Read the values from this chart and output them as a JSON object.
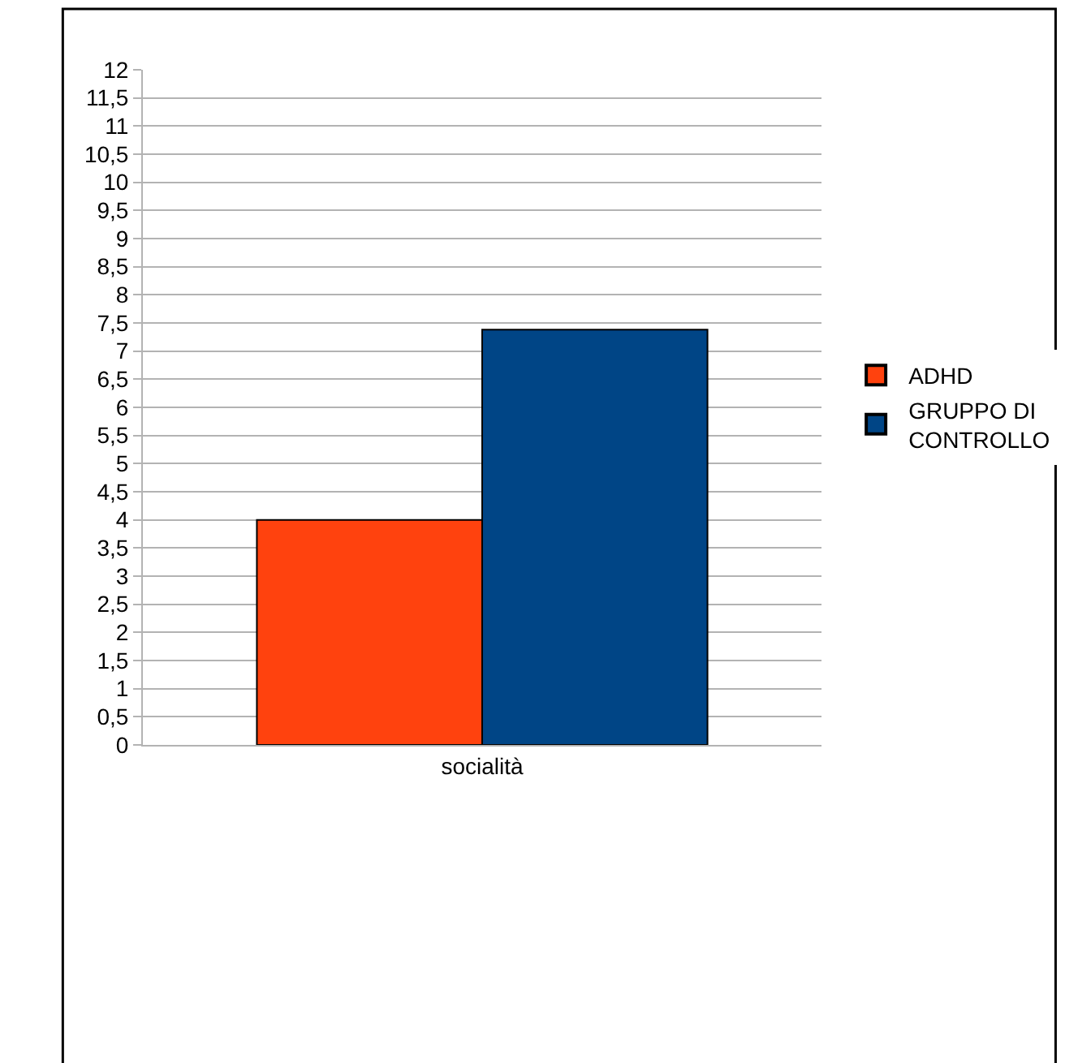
{
  "chart_data": {
    "type": "bar",
    "categories": [
      "socialità"
    ],
    "series": [
      {
        "name": "ADHD",
        "color": "#ff420e",
        "values": [
          4.0
        ]
      },
      {
        "name": "GRUPPO DI CONTROLLO",
        "color": "#004586",
        "values": [
          7.38
        ]
      }
    ],
    "ylim": [
      0,
      12
    ],
    "yticks": [
      0,
      {
        "value": 0.5,
        "label": "0,5"
      },
      1,
      {
        "value": 1.5,
        "label": "1,5"
      },
      2,
      {
        "value": 2.5,
        "label": "2,5"
      },
      3,
      {
        "value": 3.5,
        "label": "3,5"
      },
      4,
      {
        "value": 4.5,
        "label": "4,5"
      },
      5,
      {
        "value": 5.5,
        "label": "5,5"
      },
      6,
      {
        "value": 6.5,
        "label": "6,5"
      },
      7,
      {
        "value": 7.5,
        "label": "7,5"
      },
      8,
      {
        "value": 8.5,
        "label": "8,5"
      },
      9,
      {
        "value": 9.5,
        "label": "9,5"
      },
      10,
      {
        "value": 10.5,
        "label": "10,5"
      },
      11,
      {
        "value": 11.5,
        "label": "11,5"
      },
      12
    ],
    "grid": "y",
    "legend": "right"
  }
}
